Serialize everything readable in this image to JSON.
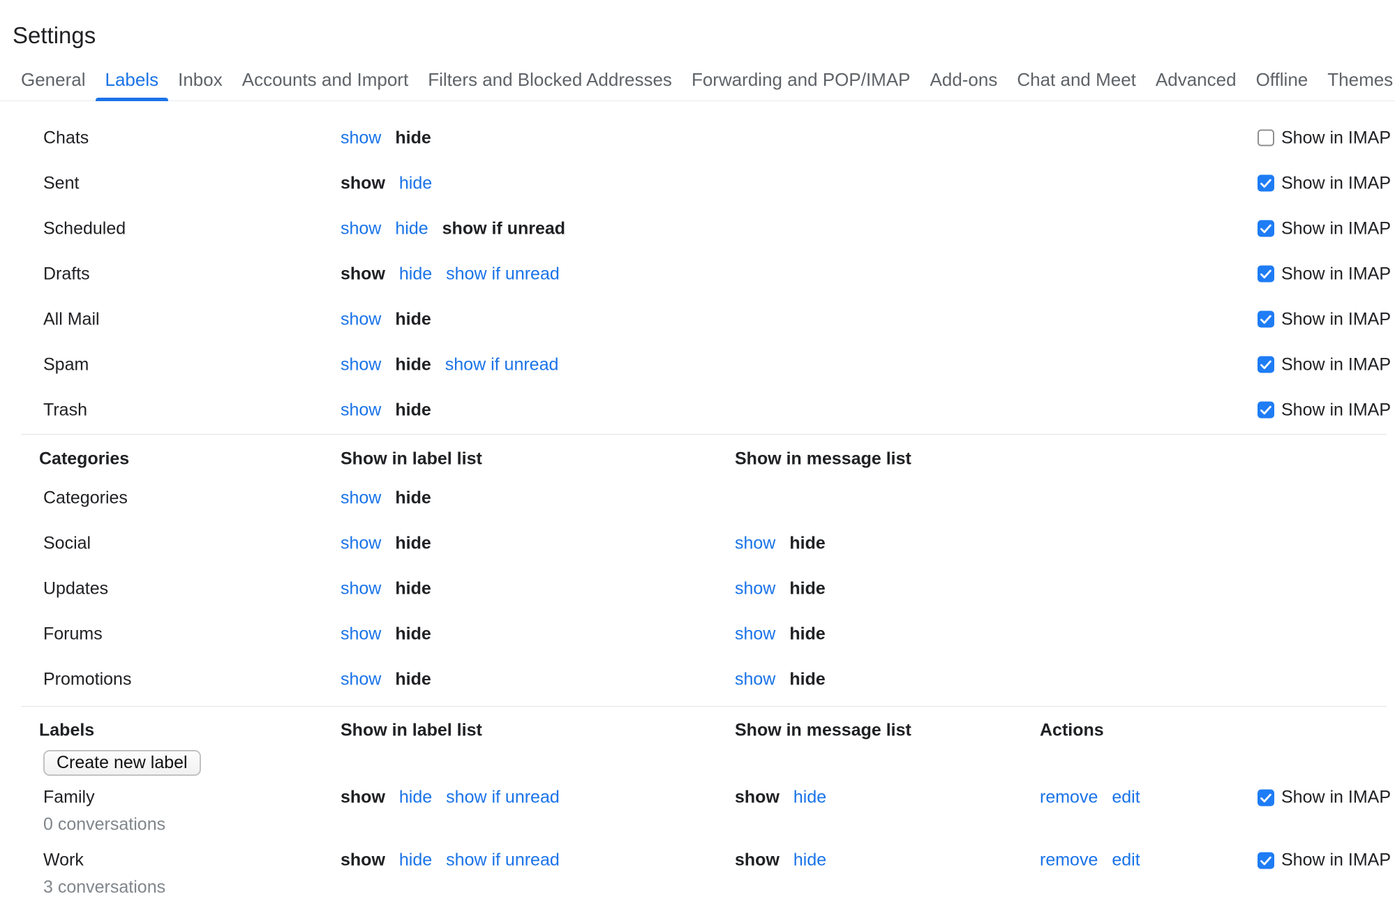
{
  "page": {
    "title": "Settings"
  },
  "tabs": [
    {
      "label": "General",
      "active": false
    },
    {
      "label": "Labels",
      "active": true
    },
    {
      "label": "Inbox",
      "active": false
    },
    {
      "label": "Accounts and Import",
      "active": false
    },
    {
      "label": "Filters and Blocked Addresses",
      "active": false
    },
    {
      "label": "Forwarding and POP/IMAP",
      "active": false
    },
    {
      "label": "Add-ons",
      "active": false
    },
    {
      "label": "Chat and Meet",
      "active": false
    },
    {
      "label": "Advanced",
      "active": false
    },
    {
      "label": "Offline",
      "active": false
    },
    {
      "label": "Themes",
      "active": false
    }
  ],
  "column_headers": {
    "label_list": "Show in label list",
    "message_list": "Show in message list",
    "actions": "Actions"
  },
  "imap_label": "Show in IMAP",
  "colors": {
    "link": "#1a73e8",
    "active_tab": "#1a73e8",
    "checkbox": "#1e7cf5",
    "text": "#202124",
    "muted": "#80868b"
  },
  "sections": [
    {
      "id": "system-labels",
      "rows": [
        {
          "name": "Chats",
          "label_list": [
            {
              "text": "show",
              "state": "link"
            },
            {
              "text": "hide",
              "state": "selected"
            }
          ],
          "imap_checked": false
        },
        {
          "name": "Sent",
          "label_list": [
            {
              "text": "show",
              "state": "selected"
            },
            {
              "text": "hide",
              "state": "link"
            }
          ],
          "imap_checked": true
        },
        {
          "name": "Scheduled",
          "label_list": [
            {
              "text": "show",
              "state": "link"
            },
            {
              "text": "hide",
              "state": "link"
            },
            {
              "text": "show if unread",
              "state": "selected"
            }
          ],
          "imap_checked": true
        },
        {
          "name": "Drafts",
          "label_list": [
            {
              "text": "show",
              "state": "selected"
            },
            {
              "text": "hide",
              "state": "link"
            },
            {
              "text": "show if unread",
              "state": "link"
            }
          ],
          "imap_checked": true
        },
        {
          "name": "All Mail",
          "label_list": [
            {
              "text": "show",
              "state": "link"
            },
            {
              "text": "hide",
              "state": "selected"
            }
          ],
          "imap_checked": true
        },
        {
          "name": "Spam",
          "label_list": [
            {
              "text": "show",
              "state": "link"
            },
            {
              "text": "hide",
              "state": "selected"
            },
            {
              "text": "show if unread",
              "state": "link"
            }
          ],
          "imap_checked": true
        },
        {
          "name": "Trash",
          "label_list": [
            {
              "text": "show",
              "state": "link"
            },
            {
              "text": "hide",
              "state": "selected"
            }
          ],
          "imap_checked": true
        }
      ]
    },
    {
      "id": "categories",
      "header": {
        "title": "Categories",
        "columns": [
          "label_list",
          "message_list"
        ]
      },
      "rows": [
        {
          "name": "Categories",
          "label_list": [
            {
              "text": "show",
              "state": "link"
            },
            {
              "text": "hide",
              "state": "selected"
            }
          ]
        },
        {
          "name": "Social",
          "label_list": [
            {
              "text": "show",
              "state": "link"
            },
            {
              "text": "hide",
              "state": "selected"
            }
          ],
          "message_list": [
            {
              "text": "show",
              "state": "link"
            },
            {
              "text": "hide",
              "state": "selected"
            }
          ]
        },
        {
          "name": "Updates",
          "label_list": [
            {
              "text": "show",
              "state": "link"
            },
            {
              "text": "hide",
              "state": "selected"
            }
          ],
          "message_list": [
            {
              "text": "show",
              "state": "link"
            },
            {
              "text": "hide",
              "state": "selected"
            }
          ]
        },
        {
          "name": "Forums",
          "label_list": [
            {
              "text": "show",
              "state": "link"
            },
            {
              "text": "hide",
              "state": "selected"
            }
          ],
          "message_list": [
            {
              "text": "show",
              "state": "link"
            },
            {
              "text": "hide",
              "state": "selected"
            }
          ]
        },
        {
          "name": "Promotions",
          "label_list": [
            {
              "text": "show",
              "state": "link"
            },
            {
              "text": "hide",
              "state": "selected"
            }
          ],
          "message_list": [
            {
              "text": "show",
              "state": "link"
            },
            {
              "text": "hide",
              "state": "selected"
            }
          ]
        }
      ]
    },
    {
      "id": "labels",
      "header": {
        "title": "Labels",
        "columns": [
          "label_list",
          "message_list",
          "actions"
        ]
      },
      "button": "Create new label",
      "rows": [
        {
          "name": "Family",
          "sub": "0 conversations",
          "label_list": [
            {
              "text": "show",
              "state": "selected"
            },
            {
              "text": "hide",
              "state": "link"
            },
            {
              "text": "show if unread",
              "state": "link"
            }
          ],
          "message_list": [
            {
              "text": "show",
              "state": "selected"
            },
            {
              "text": "hide",
              "state": "link"
            }
          ],
          "actions": [
            {
              "text": "remove"
            },
            {
              "text": "edit"
            }
          ],
          "imap_checked": true
        },
        {
          "name": "Work",
          "sub": "3 conversations",
          "label_list": [
            {
              "text": "show",
              "state": "selected"
            },
            {
              "text": "hide",
              "state": "link"
            },
            {
              "text": "show if unread",
              "state": "link"
            }
          ],
          "message_list": [
            {
              "text": "show",
              "state": "selected"
            },
            {
              "text": "hide",
              "state": "link"
            }
          ],
          "actions": [
            {
              "text": "remove"
            },
            {
              "text": "edit"
            }
          ],
          "imap_checked": true
        }
      ]
    }
  ]
}
